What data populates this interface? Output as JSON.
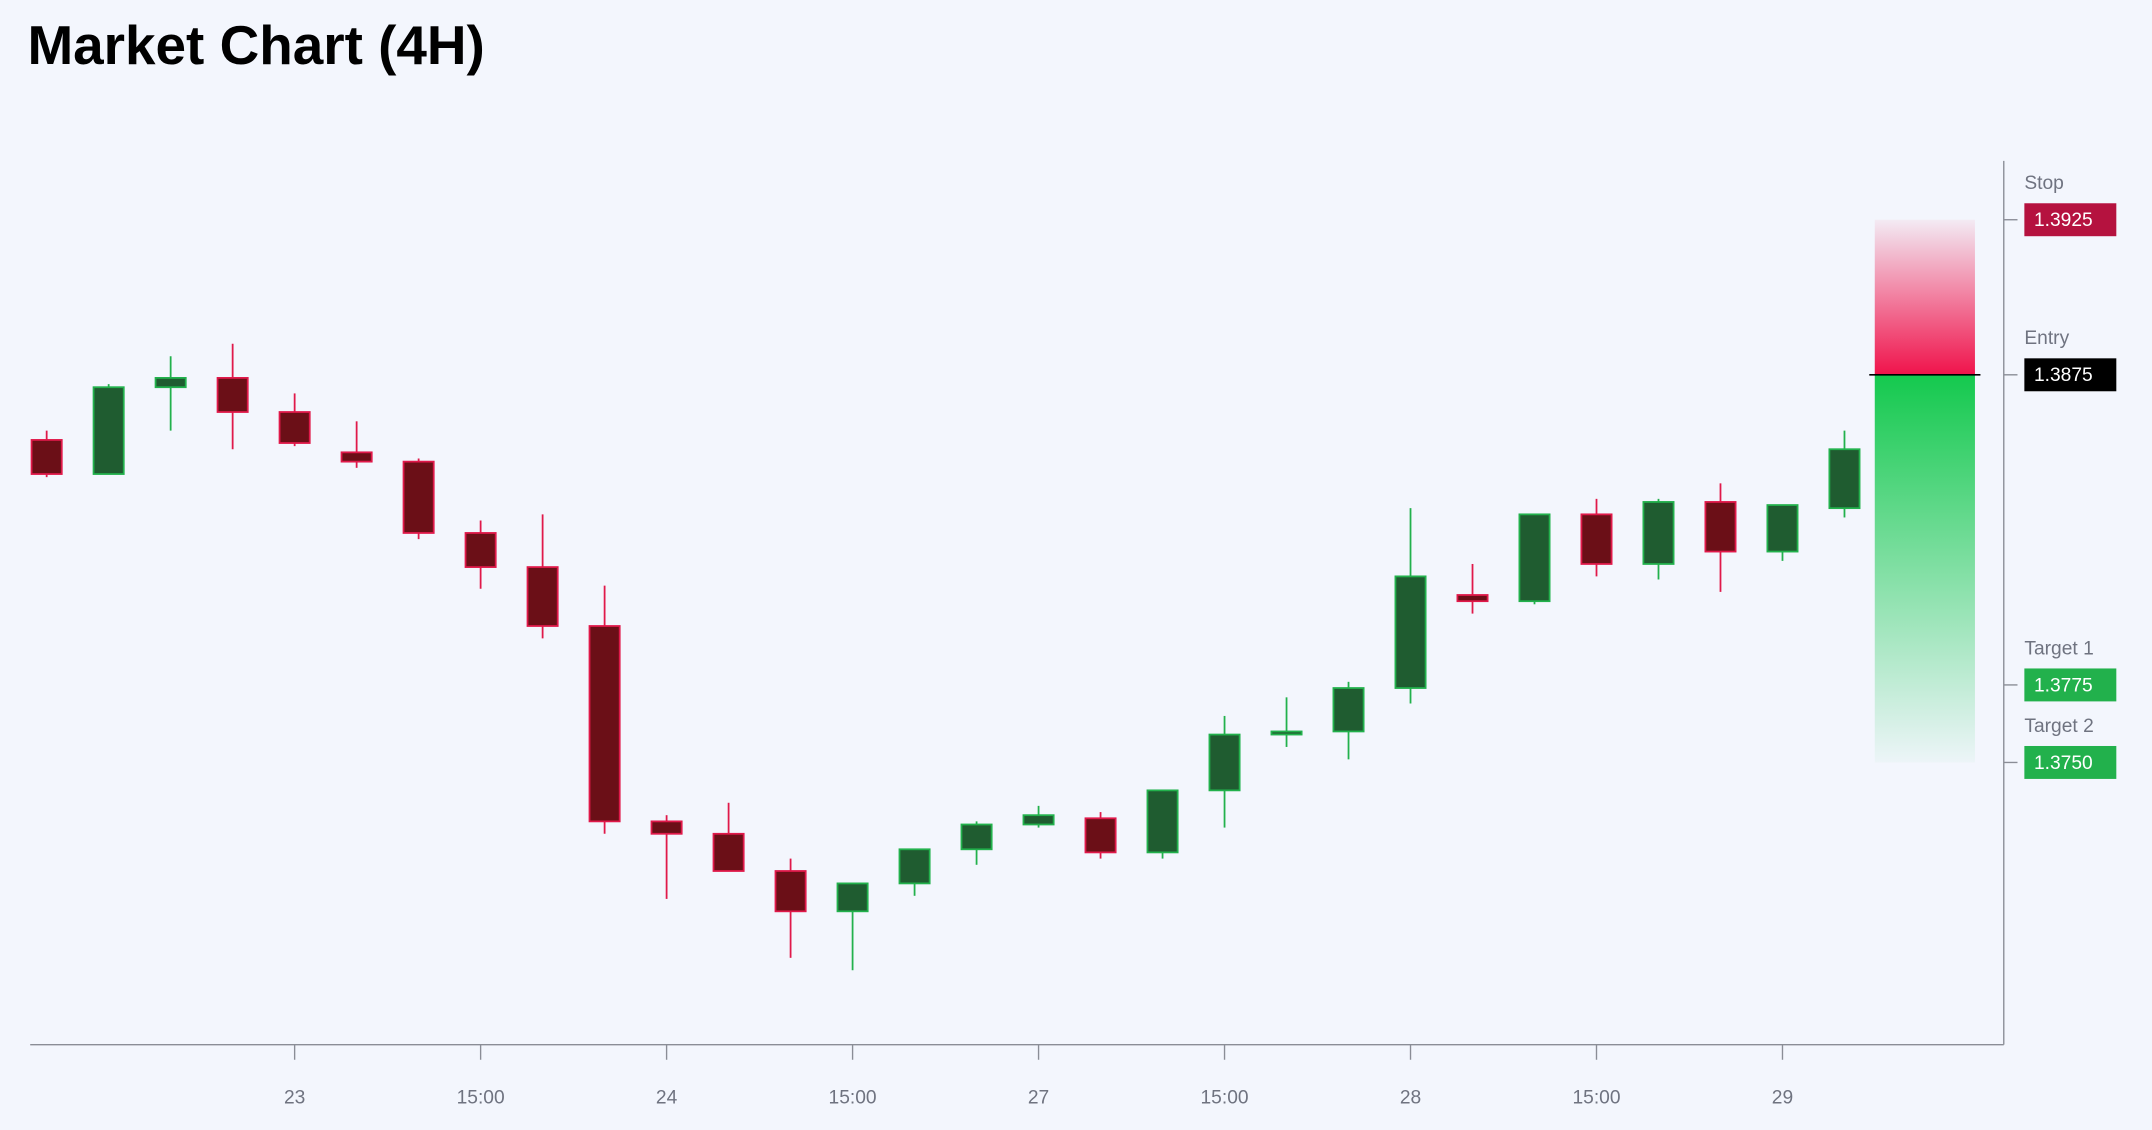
{
  "chart_data": {
    "type": "candlestick",
    "title": "Market Chart (4H)",
    "x": [
      null,
      null,
      null,
      null,
      "23",
      null,
      null,
      "15:00",
      null,
      null,
      "24",
      null,
      null,
      "15:00",
      null,
      null,
      "27",
      null,
      null,
      "15:00",
      null,
      null,
      "28",
      null,
      null,
      "15:00",
      null,
      null,
      "29",
      null
    ],
    "open": [
      1.3854,
      1.3843,
      1.3871,
      1.3874,
      1.3863,
      1.385,
      1.3847,
      1.3824,
      1.3813,
      1.3794,
      1.3731,
      1.3727,
      1.3715,
      1.3702,
      1.3711,
      1.3722,
      1.373,
      1.3732,
      1.3721,
      1.3741,
      1.3759,
      1.376,
      1.3774,
      1.3804,
      1.3802,
      1.383,
      1.3814,
      1.3834,
      1.3818,
      1.3832
    ],
    "high": [
      1.3857,
      1.3872,
      1.3881,
      1.3885,
      1.3869,
      1.386,
      1.3848,
      1.3828,
      1.383,
      1.3807,
      1.3733,
      1.3737,
      1.3719,
      1.3711,
      1.3722,
      1.3731,
      1.3736,
      1.3734,
      1.3741,
      1.3765,
      1.3771,
      1.3776,
      1.3832,
      1.3814,
      1.383,
      1.3835,
      1.3835,
      1.384,
      1.3833,
      1.3857
    ],
    "low": [
      1.3842,
      1.3843,
      1.3857,
      1.3851,
      1.3852,
      1.3845,
      1.3822,
      1.3806,
      1.379,
      1.3727,
      1.3706,
      1.3715,
      1.3687,
      1.3683,
      1.3707,
      1.3717,
      1.3729,
      1.3719,
      1.3719,
      1.3729,
      1.3755,
      1.3751,
      1.3769,
      1.3798,
      1.3801,
      1.381,
      1.3809,
      1.3805,
      1.3815,
      1.3829
    ],
    "close": [
      1.3843,
      1.3871,
      1.3874,
      1.3863,
      1.3853,
      1.3847,
      1.3824,
      1.3813,
      1.3794,
      1.3731,
      1.3727,
      1.3715,
      1.3702,
      1.3711,
      1.3722,
      1.373,
      1.3733,
      1.3721,
      1.3741,
      1.3759,
      1.376,
      1.3774,
      1.381,
      1.3802,
      1.383,
      1.3814,
      1.3834,
      1.3818,
      1.3833,
      1.3851
    ],
    "up_color": "#1f5c30",
    "up_border": "#22b14c",
    "down_color": "#6b0f17",
    "down_border": "#e0194a",
    "ylim": [
      1.3659,
      1.3944
    ],
    "levels": {
      "names": [
        "Stop",
        "Entry",
        "Target 1",
        "Target 2"
      ],
      "values": [
        1.3925,
        1.3875,
        1.3775,
        1.375
      ],
      "value_labels": [
        "1.3925",
        "1.3875",
        "1.3775",
        "1.3750"
      ],
      "colors": [
        "#b5123f",
        "#000000",
        "#22b14c",
        "#22b14c"
      ]
    }
  }
}
